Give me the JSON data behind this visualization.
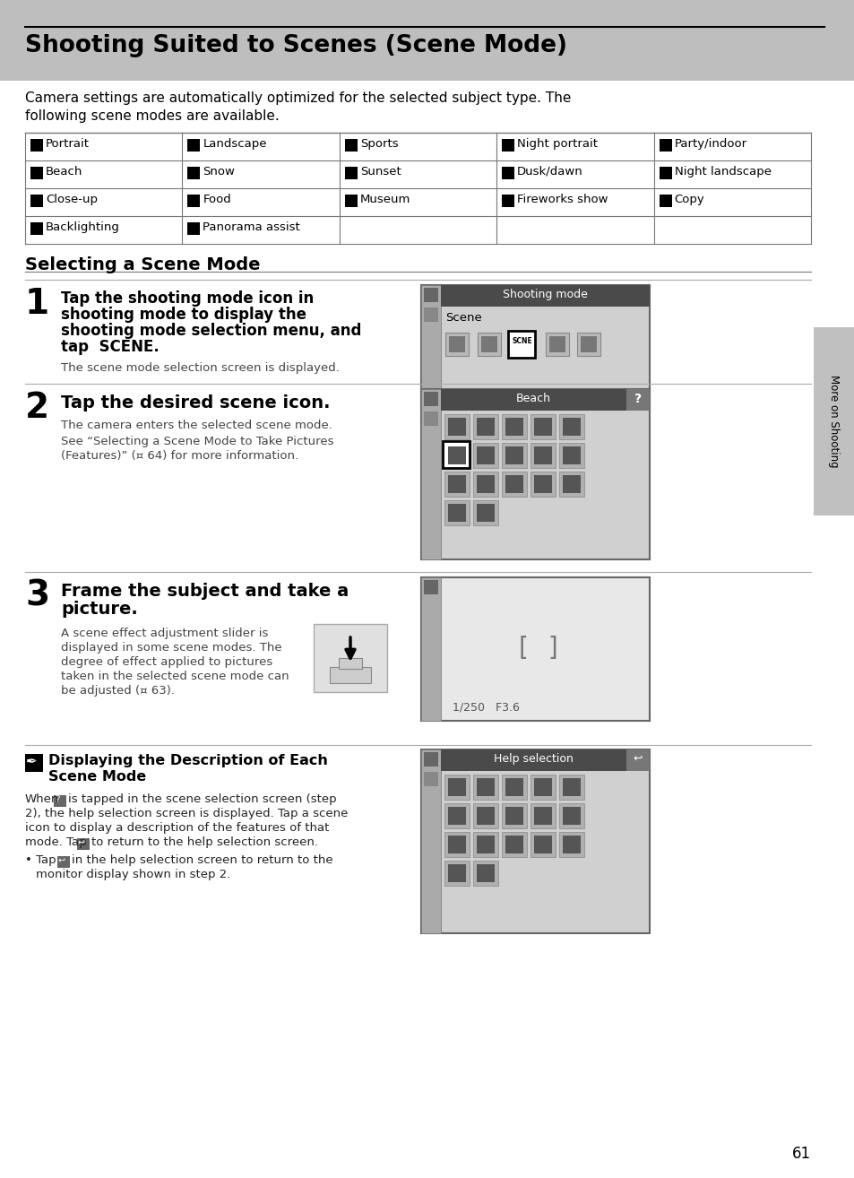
{
  "title": "Shooting Suited to Scenes (Scene Mode)",
  "bg_color": "#ffffff",
  "header_bg": "#bebebe",
  "intro_text1": "Camera settings are automatically optimized for the selected subject type. The",
  "intro_text2": "following scene modes are available.",
  "scene_modes_row0": [
    "Portrait",
    "Landscape",
    "Sports",
    "Night portrait",
    "Party/indoor"
  ],
  "scene_modes_row1": [
    "Beach",
    "Snow",
    "Sunset",
    "Dusk/dawn",
    "Night landscape"
  ],
  "scene_modes_row2": [
    "Close-up",
    "Food",
    "Museum",
    "Fireworks show",
    "Copy"
  ],
  "scene_modes_row3": [
    "Backlighting",
    "Panorama assist"
  ],
  "section2_title": "Selecting a Scene Mode",
  "step1_num": "1",
  "step1_text": "Tap the shooting mode icon in\nshooting mode to display the\nshooting mode selection menu, and\ntap  SCENE.",
  "step1_note": "The scene mode selection screen is displayed.",
  "step2_num": "2",
  "step2_bold": "Tap the desired scene icon.",
  "step2_text1": "The camera enters the selected scene mode.",
  "step2_text2": "See “Selecting a Scene Mode to Take Pictures\n(Features)” (¤ 64) for more information.",
  "step3_num": "3",
  "step3_bold": "Frame the subject and take a\npicture.",
  "step3_text": "A scene effect adjustment slider is\ndisplayed in some scene modes. The\ndegree of effect applied to pictures\ntaken in the selected scene mode can\nbe adjusted (¤ 63).",
  "note_title": "Displaying the Description of Each\nScene Mode",
  "note_para": "When  ? is tapped in the scene selection screen (step\n2), the help selection screen is displayed. Tap a scene\nicon to display a description of the features of that\nmode. Tap  ↩  to return to the help selection screen.",
  "note_bullet": "• Tap  ↩  in the help selection screen to return to the\n   monitor display shown in step 2.",
  "page_num": "61",
  "sidebar_text": "More on Shooting",
  "screen1_header": "Shooting mode",
  "screen1_label": "Scene",
  "screen2_header": "Beach",
  "screen4_header": "Help selection",
  "table_color": "#777777",
  "screen_bg": "#d0d0d0",
  "screen_header_color": "#4a4a4a",
  "sidebar_color": "#c0c0c0"
}
